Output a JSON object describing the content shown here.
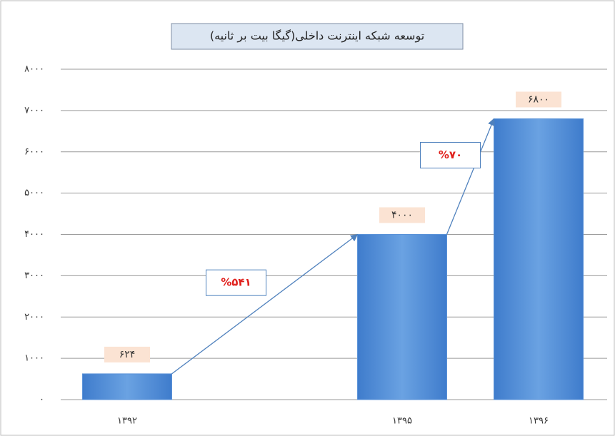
{
  "chart_data": {
    "type": "bar",
    "title": "توسعه شبکه اینترنت داخلی(گیگا بیت بر ثانیه)",
    "categories": [
      "۱۳۹۲",
      "۱۳۹۵",
      "۱۳۹۶"
    ],
    "values": [
      624,
      4000,
      6800
    ],
    "value_labels": [
      "۶۲۴",
      "۴۰۰۰",
      "۶۸۰۰"
    ],
    "color": "#5b93d8",
    "ylim": [
      0,
      8000
    ],
    "yticks": [
      {
        "value": 0,
        "label": "۰"
      },
      {
        "value": 1000,
        "label": "۱۰۰۰"
      },
      {
        "value": 2000,
        "label": "۲۰۰۰"
      },
      {
        "value": 3000,
        "label": "۳۰۰۰"
      },
      {
        "value": 4000,
        "label": "۴۰۰۰"
      },
      {
        "value": 5000,
        "label": "۵۰۰۰"
      },
      {
        "value": 6000,
        "label": "۶۰۰۰"
      },
      {
        "value": 7000,
        "label": "۷۰۰۰"
      },
      {
        "value": 8000,
        "label": "۸۰۰۰"
      }
    ],
    "grid": true,
    "annotations": [
      "%۵۴۱",
      "%۷۰"
    ]
  }
}
